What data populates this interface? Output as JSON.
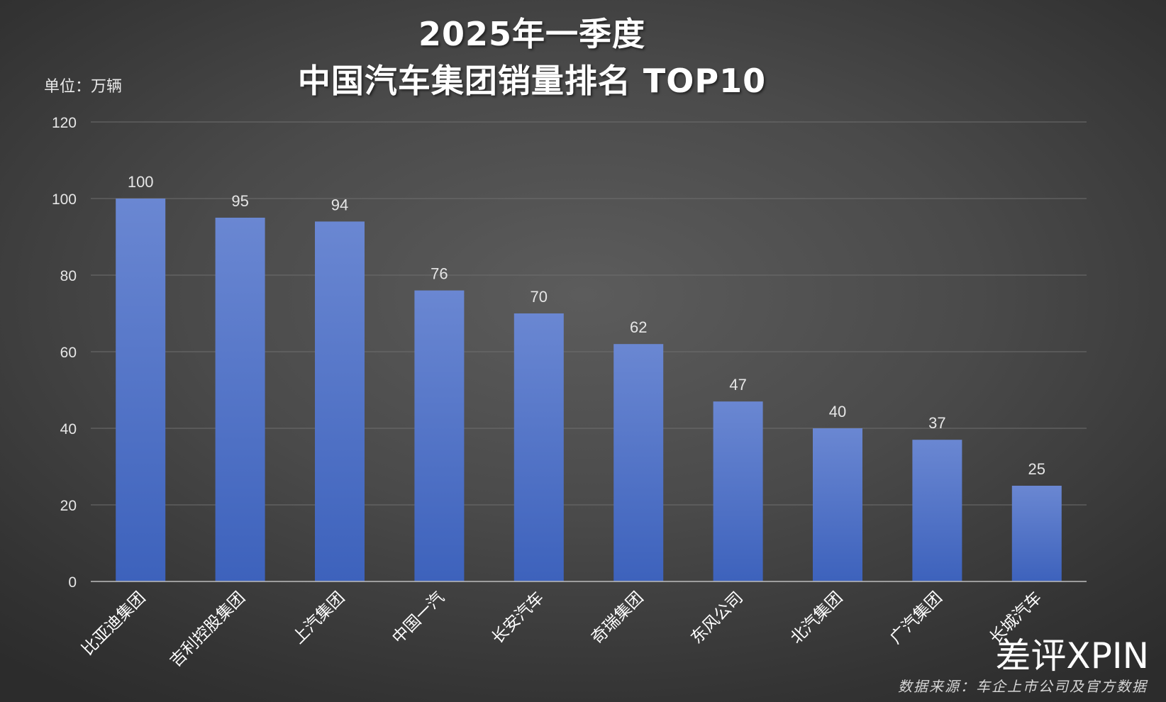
{
  "chart_data": {
    "type": "bar",
    "title": "2025年一季度",
    "subtitle": "中国汽车集团销量排名 TOP10",
    "unit_label": "单位：万辆",
    "categories": [
      "比亚迪集团",
      "吉利控股集团",
      "上汽集团",
      "中国一汽",
      "长安汽车",
      "奇瑞集团",
      "东风公司",
      "北汽集团",
      "广汽集团",
      "长城汽车"
    ],
    "series": [
      {
        "values": [
          100,
          95,
          94,
          76,
          70,
          62,
          47,
          40,
          37,
          25
        ]
      }
    ],
    "ylim": [
      0,
      120
    ],
    "yticks": [
      "0",
      "20",
      "40",
      "60",
      "80",
      "100",
      "120"
    ],
    "grid": true,
    "data_labels": true,
    "colors": {
      "bar_top": "#6a87d2",
      "bar_bottom": "#3d62bc",
      "grid": "#6e6e6e",
      "axis": "#bdbdbd",
      "text": "#e6e6e6"
    }
  },
  "watermark": "差评XPIN",
  "source": "数据来源：车企上市公司及官方数据"
}
